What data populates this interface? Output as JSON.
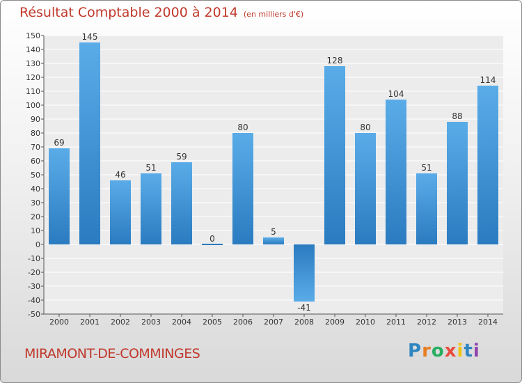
{
  "chart_data": {
    "type": "bar",
    "title": "Résultat Comptable 2000 à 2014",
    "subtitle": "(en milliers d'€)",
    "categories": [
      "2000",
      "2001",
      "2002",
      "2003",
      "2004",
      "2005",
      "2006",
      "2007",
      "2008",
      "2009",
      "2010",
      "2011",
      "2012",
      "2013",
      "2014"
    ],
    "values": [
      69,
      145,
      46,
      51,
      59,
      0,
      80,
      5,
      -41,
      128,
      80,
      104,
      51,
      88,
      114
    ],
    "ylim": [
      -50,
      150
    ],
    "yticks": [
      -50,
      -40,
      -30,
      -20,
      -10,
      0,
      10,
      20,
      30,
      40,
      50,
      60,
      70,
      80,
      90,
      100,
      110,
      120,
      130,
      140,
      150
    ],
    "grid": true,
    "bar_color": "#3a8fd6"
  },
  "footer": {
    "commune": "MIRAMONT-DE-COMMINGES",
    "logo_letters": [
      {
        "ch": "P",
        "color": "#2e86c1"
      },
      {
        "ch": "r",
        "color": "#e67e22"
      },
      {
        "ch": "o",
        "color": "#27ae60"
      },
      {
        "ch": "x",
        "color": "#e74c3c"
      },
      {
        "ch": "i",
        "color": "#f1c40f"
      },
      {
        "ch": "t",
        "color": "#2e86c1"
      },
      {
        "ch": "i",
        "color": "#8e44ad"
      }
    ]
  }
}
